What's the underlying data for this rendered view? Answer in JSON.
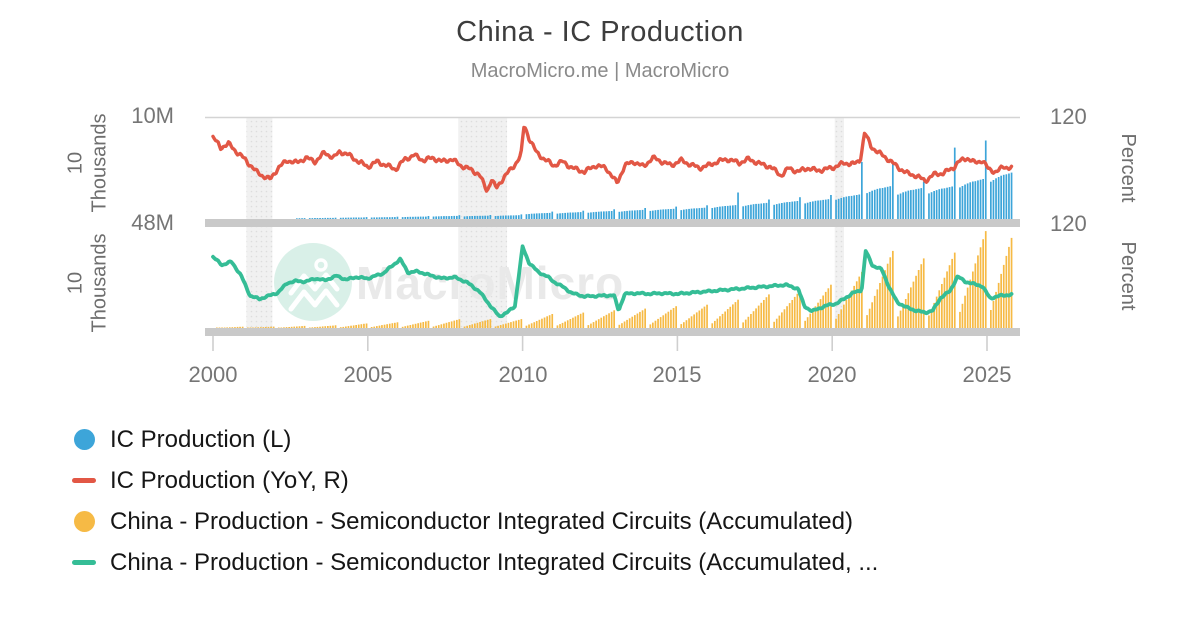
{
  "header": {
    "title": "China - IC Production",
    "subtitle": "MacroMicro.me | MacroMicro"
  },
  "watermark": {
    "brand": "MacroMicro",
    "logo": "macromicro-mountain-logo",
    "circle_color": "#d9f0e8",
    "text_color": "#e9e9e9"
  },
  "axes": {
    "panel1": {
      "left_unit": "10 Thousands",
      "left_tick": "10M",
      "right_unit": "Percent",
      "right_tick": "120"
    },
    "panel2": {
      "left_unit": "10 Thousands",
      "left_tick": "48M",
      "right_unit": "Percent",
      "right_tick": "120"
    },
    "x_ticks": [
      "2000",
      "2005",
      "2010",
      "2015",
      "2020",
      "2025"
    ]
  },
  "legend": [
    {
      "label": "IC Production (L)",
      "marker": "circle",
      "color": "#3da5d9"
    },
    {
      "label": "IC Production (YoY, R)",
      "marker": "dash",
      "color": "#e25745"
    },
    {
      "label": "China - Production - Semiconductor Integrated Circuits (Accumulated)",
      "marker": "circle",
      "color": "#f6ba45"
    },
    {
      "label": "China - Production - Semiconductor Integrated Circuits (Accumulated, ...",
      "marker": "dash",
      "color": "#35bd96"
    }
  ],
  "chart_data": {
    "type": "bar+line",
    "layout": "two stacked panels sharing one x axis",
    "x_domain": [
      1999.74,
      2026.07
    ],
    "x_tick_years": [
      2000,
      2005,
      2010,
      2015,
      2020,
      2025
    ],
    "recession_bands": [
      [
        2001.08,
        2001.92
      ],
      [
        2007.92,
        2009.5
      ],
      [
        2020.08,
        2020.38
      ]
    ],
    "end": {
      "year": 2025,
      "month": 10
    },
    "panel1": {
      "left_axis": {
        "unit": "10 Thousands",
        "top_tick_label": "10M",
        "max": 10,
        "min": 0
      },
      "right_axis": {
        "unit": "Percent",
        "top_tick_label": "120",
        "max": 120,
        "min": -40
      },
      "bar_series": {
        "name": "IC Production (L)",
        "color": "#3da5d9",
        "value_unit": "millions of 10-thousand units per month",
        "start": {
          "year": 2002,
          "month": 9
        },
        "seasonal_feb_dec": [
          0.86,
          0.9,
          0.94,
          0.97,
          1.0,
          1.02,
          1.03,
          1.05,
          1.07,
          1.09,
          1.32
        ],
        "annual_avg": {
          "2002": 0.07,
          "2003": 0.1,
          "2004": 0.14,
          "2005": 0.17,
          "2006": 0.22,
          "2007": 0.28,
          "2008": 0.3,
          "2009": 0.34,
          "2010": 0.55,
          "2011": 0.62,
          "2012": 0.72,
          "2013": 0.82,
          "2014": 0.92,
          "2015": 1.02,
          "2016": 1.25,
          "2017": 1.45,
          "2018": 1.62,
          "2019": 1.78,
          "2020": 2.2,
          "2021": 2.95,
          "2022": 2.78,
          "2023": 2.92,
          "2024": 3.6,
          "2025": 4.25
        },
        "dec_overrides": {
          "2016": 2.6,
          "2020": 5.6,
          "2021": 5.6,
          "2023": 7.0,
          "2024": 7.7
        }
      },
      "line_series": {
        "name": "IC Production (YoY, R)",
        "color": "#e25745",
        "value_unit": "percent",
        "noise": 4,
        "points": [
          [
            2000.0,
            88
          ],
          [
            2000.25,
            72
          ],
          [
            2000.5,
            78
          ],
          [
            2000.75,
            66
          ],
          [
            2001.0,
            55
          ],
          [
            2001.2,
            45
          ],
          [
            2001.4,
            34
          ],
          [
            2001.6,
            28
          ],
          [
            2001.85,
            22
          ],
          [
            2002.1,
            40
          ],
          [
            2002.4,
            52
          ],
          [
            2002.7,
            48
          ],
          [
            2003.0,
            56
          ],
          [
            2003.3,
            50
          ],
          [
            2003.6,
            64
          ],
          [
            2003.9,
            56
          ],
          [
            2004.1,
            66
          ],
          [
            2004.4,
            60
          ],
          [
            2004.7,
            50
          ],
          [
            2005.0,
            42
          ],
          [
            2005.3,
            50
          ],
          [
            2005.6,
            44
          ],
          [
            2005.9,
            38
          ],
          [
            2006.2,
            54
          ],
          [
            2006.5,
            60
          ],
          [
            2006.8,
            52
          ],
          [
            2007.1,
            56
          ],
          [
            2007.4,
            50
          ],
          [
            2007.7,
            54
          ],
          [
            2008.0,
            44
          ],
          [
            2008.3,
            38
          ],
          [
            2008.6,
            30
          ],
          [
            2008.85,
            4
          ],
          [
            2009.0,
            22
          ],
          [
            2009.15,
            8
          ],
          [
            2009.4,
            26
          ],
          [
            2009.7,
            42
          ],
          [
            2009.95,
            60
          ],
          [
            2010.05,
            108
          ],
          [
            2010.2,
            88
          ],
          [
            2010.45,
            64
          ],
          [
            2010.7,
            54
          ],
          [
            2011.0,
            44
          ],
          [
            2011.3,
            50
          ],
          [
            2011.6,
            40
          ],
          [
            2012.0,
            34
          ],
          [
            2012.35,
            44
          ],
          [
            2012.7,
            40
          ],
          [
            2013.05,
            16
          ],
          [
            2013.3,
            44
          ],
          [
            2013.6,
            50
          ],
          [
            2013.9,
            42
          ],
          [
            2014.2,
            56
          ],
          [
            2014.5,
            50
          ],
          [
            2014.8,
            44
          ],
          [
            2015.1,
            52
          ],
          [
            2015.4,
            46
          ],
          [
            2015.7,
            40
          ],
          [
            2016.0,
            44
          ],
          [
            2016.3,
            50
          ],
          [
            2016.6,
            54
          ],
          [
            2017.0,
            48
          ],
          [
            2017.3,
            54
          ],
          [
            2017.7,
            46
          ],
          [
            2018.0,
            42
          ],
          [
            2018.35,
            28
          ],
          [
            2018.6,
            40
          ],
          [
            2018.9,
            34
          ],
          [
            2019.2,
            40
          ],
          [
            2019.5,
            36
          ],
          [
            2019.8,
            38
          ],
          [
            2020.1,
            42
          ],
          [
            2020.4,
            48
          ],
          [
            2020.7,
            46
          ],
          [
            2020.9,
            52
          ],
          [
            2021.05,
            96
          ],
          [
            2021.25,
            74
          ],
          [
            2021.5,
            64
          ],
          [
            2021.8,
            54
          ],
          [
            2022.1,
            42
          ],
          [
            2022.4,
            32
          ],
          [
            2022.7,
            28
          ],
          [
            2023.0,
            20
          ],
          [
            2023.3,
            30
          ],
          [
            2023.6,
            32
          ],
          [
            2023.9,
            40
          ],
          [
            2024.1,
            50
          ],
          [
            2024.35,
            56
          ],
          [
            2024.6,
            48
          ],
          [
            2024.85,
            52
          ],
          [
            2025.05,
            38
          ],
          [
            2025.3,
            34
          ],
          [
            2025.55,
            42
          ],
          [
            2025.8,
            40
          ]
        ]
      }
    },
    "panel2": {
      "left_axis": {
        "unit": "10 Thousands",
        "top_tick_label": "48M",
        "max": 48,
        "min": 0
      },
      "right_axis": {
        "unit": "Percent",
        "top_tick_label": "120",
        "max": 120,
        "min": -40
      },
      "bar_series": {
        "name": "China - Production - Semiconductor Integrated Circuits (Accumulated)",
        "color": "#f6ba45",
        "value_unit": "millions of 10-thousand units, year-to-date cumulative",
        "annual_totals": {
          "2000": 0.59,
          "2001": 0.64,
          "2002": 0.96,
          "2003": 1.24,
          "2004": 2.11,
          "2005": 2.66,
          "2006": 3.36,
          "2007": 4.12,
          "2008": 4.17,
          "2009": 4.14,
          "2010": 6.53,
          "2011": 7.2,
          "2012": 8.23,
          "2013": 9.02,
          "2014": 10.15,
          "2015": 10.87,
          "2016": 13.18,
          "2017": 15.65,
          "2018": 17.4,
          "2019": 20.18,
          "2020": 26.14,
          "2021": 35.94,
          "2022": 32.42,
          "2023": 35.14,
          "2024": 45.14,
          "2025": 42.0
        }
      },
      "line_series": {
        "name": "China - Production - Semiconductor Integrated Circuits (Accumulated, YoY)",
        "color": "#35bd96",
        "value_unit": "percent",
        "noise": 1.6,
        "points": [
          [
            2000.0,
            70
          ],
          [
            2000.3,
            58
          ],
          [
            2000.6,
            63
          ],
          [
            2000.9,
            42
          ],
          [
            2001.2,
            10
          ],
          [
            2001.5,
            5
          ],
          [
            2001.8,
            10
          ],
          [
            2002.1,
            15
          ],
          [
            2002.4,
            30
          ],
          [
            2002.7,
            33
          ],
          [
            2003.0,
            32
          ],
          [
            2003.3,
            37
          ],
          [
            2003.6,
            34
          ],
          [
            2004.0,
            41
          ],
          [
            2004.3,
            35
          ],
          [
            2004.6,
            39
          ],
          [
            2005.0,
            37
          ],
          [
            2005.5,
            45
          ],
          [
            2006.05,
            67
          ],
          [
            2006.3,
            46
          ],
          [
            2006.6,
            48
          ],
          [
            2007.0,
            42
          ],
          [
            2007.4,
            37
          ],
          [
            2007.8,
            39
          ],
          [
            2008.2,
            31
          ],
          [
            2008.6,
            17
          ],
          [
            2009.0,
            -8
          ],
          [
            2009.25,
            -22
          ],
          [
            2009.5,
            -16
          ],
          [
            2009.75,
            -6
          ],
          [
            2010.0,
            86
          ],
          [
            2010.2,
            62
          ],
          [
            2010.5,
            47
          ],
          [
            2010.8,
            40
          ],
          [
            2011.0,
            32
          ],
          [
            2011.3,
            24
          ],
          [
            2011.6,
            14
          ],
          [
            2012.0,
            9
          ],
          [
            2012.5,
            10
          ],
          [
            2012.95,
            11
          ],
          [
            2013.1,
            -13
          ],
          [
            2013.3,
            13
          ],
          [
            2013.7,
            14
          ],
          [
            2014.1,
            13
          ],
          [
            2014.5,
            14
          ],
          [
            2015.0,
            13
          ],
          [
            2015.5,
            15
          ],
          [
            2016.0,
            17
          ],
          [
            2016.5,
            19
          ],
          [
            2017.0,
            21
          ],
          [
            2017.5,
            23
          ],
          [
            2018.0,
            25
          ],
          [
            2018.5,
            27
          ],
          [
            2018.9,
            21
          ],
          [
            2019.1,
            -6
          ],
          [
            2019.35,
            -14
          ],
          [
            2019.6,
            -9
          ],
          [
            2019.9,
            -4
          ],
          [
            2020.15,
            -2
          ],
          [
            2020.4,
            6
          ],
          [
            2020.7,
            15
          ],
          [
            2020.95,
            19
          ],
          [
            2021.08,
            80
          ],
          [
            2021.3,
            57
          ],
          [
            2021.6,
            51
          ],
          [
            2021.85,
            22
          ],
          [
            2022.1,
            0
          ],
          [
            2022.4,
            -8
          ],
          [
            2022.7,
            -13
          ],
          [
            2023.0,
            -16
          ],
          [
            2023.25,
            -13
          ],
          [
            2023.5,
            7
          ],
          [
            2023.8,
            17
          ],
          [
            2024.05,
            40
          ],
          [
            2024.3,
            32
          ],
          [
            2024.6,
            28
          ],
          [
            2024.85,
            25
          ],
          [
            2025.1,
            6
          ],
          [
            2025.4,
            10
          ],
          [
            2025.8,
            12
          ]
        ]
      }
    }
  }
}
